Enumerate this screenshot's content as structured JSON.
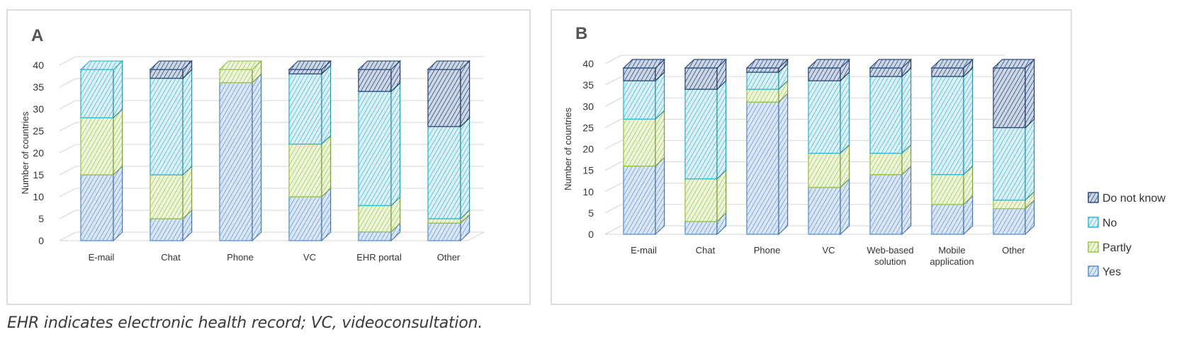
{
  "caption": "EHR indicates electronic health record; VC, videoconsultation.",
  "legend": {
    "items": [
      "Do not know",
      "No",
      "Partly",
      "Yes"
    ]
  },
  "colors": {
    "Yes": "#5b8fd6",
    "Partly": "#9bc24a",
    "No": "#38b3d4",
    "Do not know": "#2a4a7a",
    "panel_border": "#c8c8c8",
    "grid": "#d6d6d6"
  },
  "chart_data": [
    {
      "type": "bar",
      "stacked": true,
      "panel_label": "A",
      "ylabel": "Number of countries",
      "ylim": [
        0,
        40
      ],
      "yticks": [
        0,
        5,
        10,
        15,
        20,
        25,
        30,
        35,
        40
      ],
      "categories": [
        "E-mail",
        "Chat",
        "Phone",
        "VC",
        "EHR portal",
        "Other"
      ],
      "series": [
        {
          "name": "Yes",
          "values": [
            15,
            5,
            36,
            10,
            2,
            4
          ]
        },
        {
          "name": "Partly",
          "values": [
            13,
            10,
            3,
            12,
            6,
            1
          ]
        },
        {
          "name": "No",
          "values": [
            11,
            22,
            0,
            16,
            26,
            21
          ]
        },
        {
          "name": "Do not know",
          "values": [
            0,
            2,
            0,
            1,
            5,
            13
          ]
        }
      ]
    },
    {
      "type": "bar",
      "stacked": true,
      "panel_label": "B",
      "ylabel": "Number of countries",
      "ylim": [
        0,
        40
      ],
      "yticks": [
        0,
        5,
        10,
        15,
        20,
        25,
        30,
        35,
        40
      ],
      "categories": [
        "E-mail",
        "Chat",
        "Phone",
        "VC",
        "Web-based solution",
        "Mobile application",
        "Other"
      ],
      "series": [
        {
          "name": "Yes",
          "values": [
            16,
            3,
            31,
            11,
            14,
            7,
            6
          ]
        },
        {
          "name": "Partly",
          "values": [
            11,
            10,
            3,
            8,
            5,
            7,
            2
          ]
        },
        {
          "name": "No",
          "values": [
            9,
            21,
            4,
            17,
            18,
            23,
            17
          ]
        },
        {
          "name": "Do not know",
          "values": [
            3,
            5,
            1,
            3,
            2,
            2,
            14
          ]
        }
      ]
    }
  ]
}
